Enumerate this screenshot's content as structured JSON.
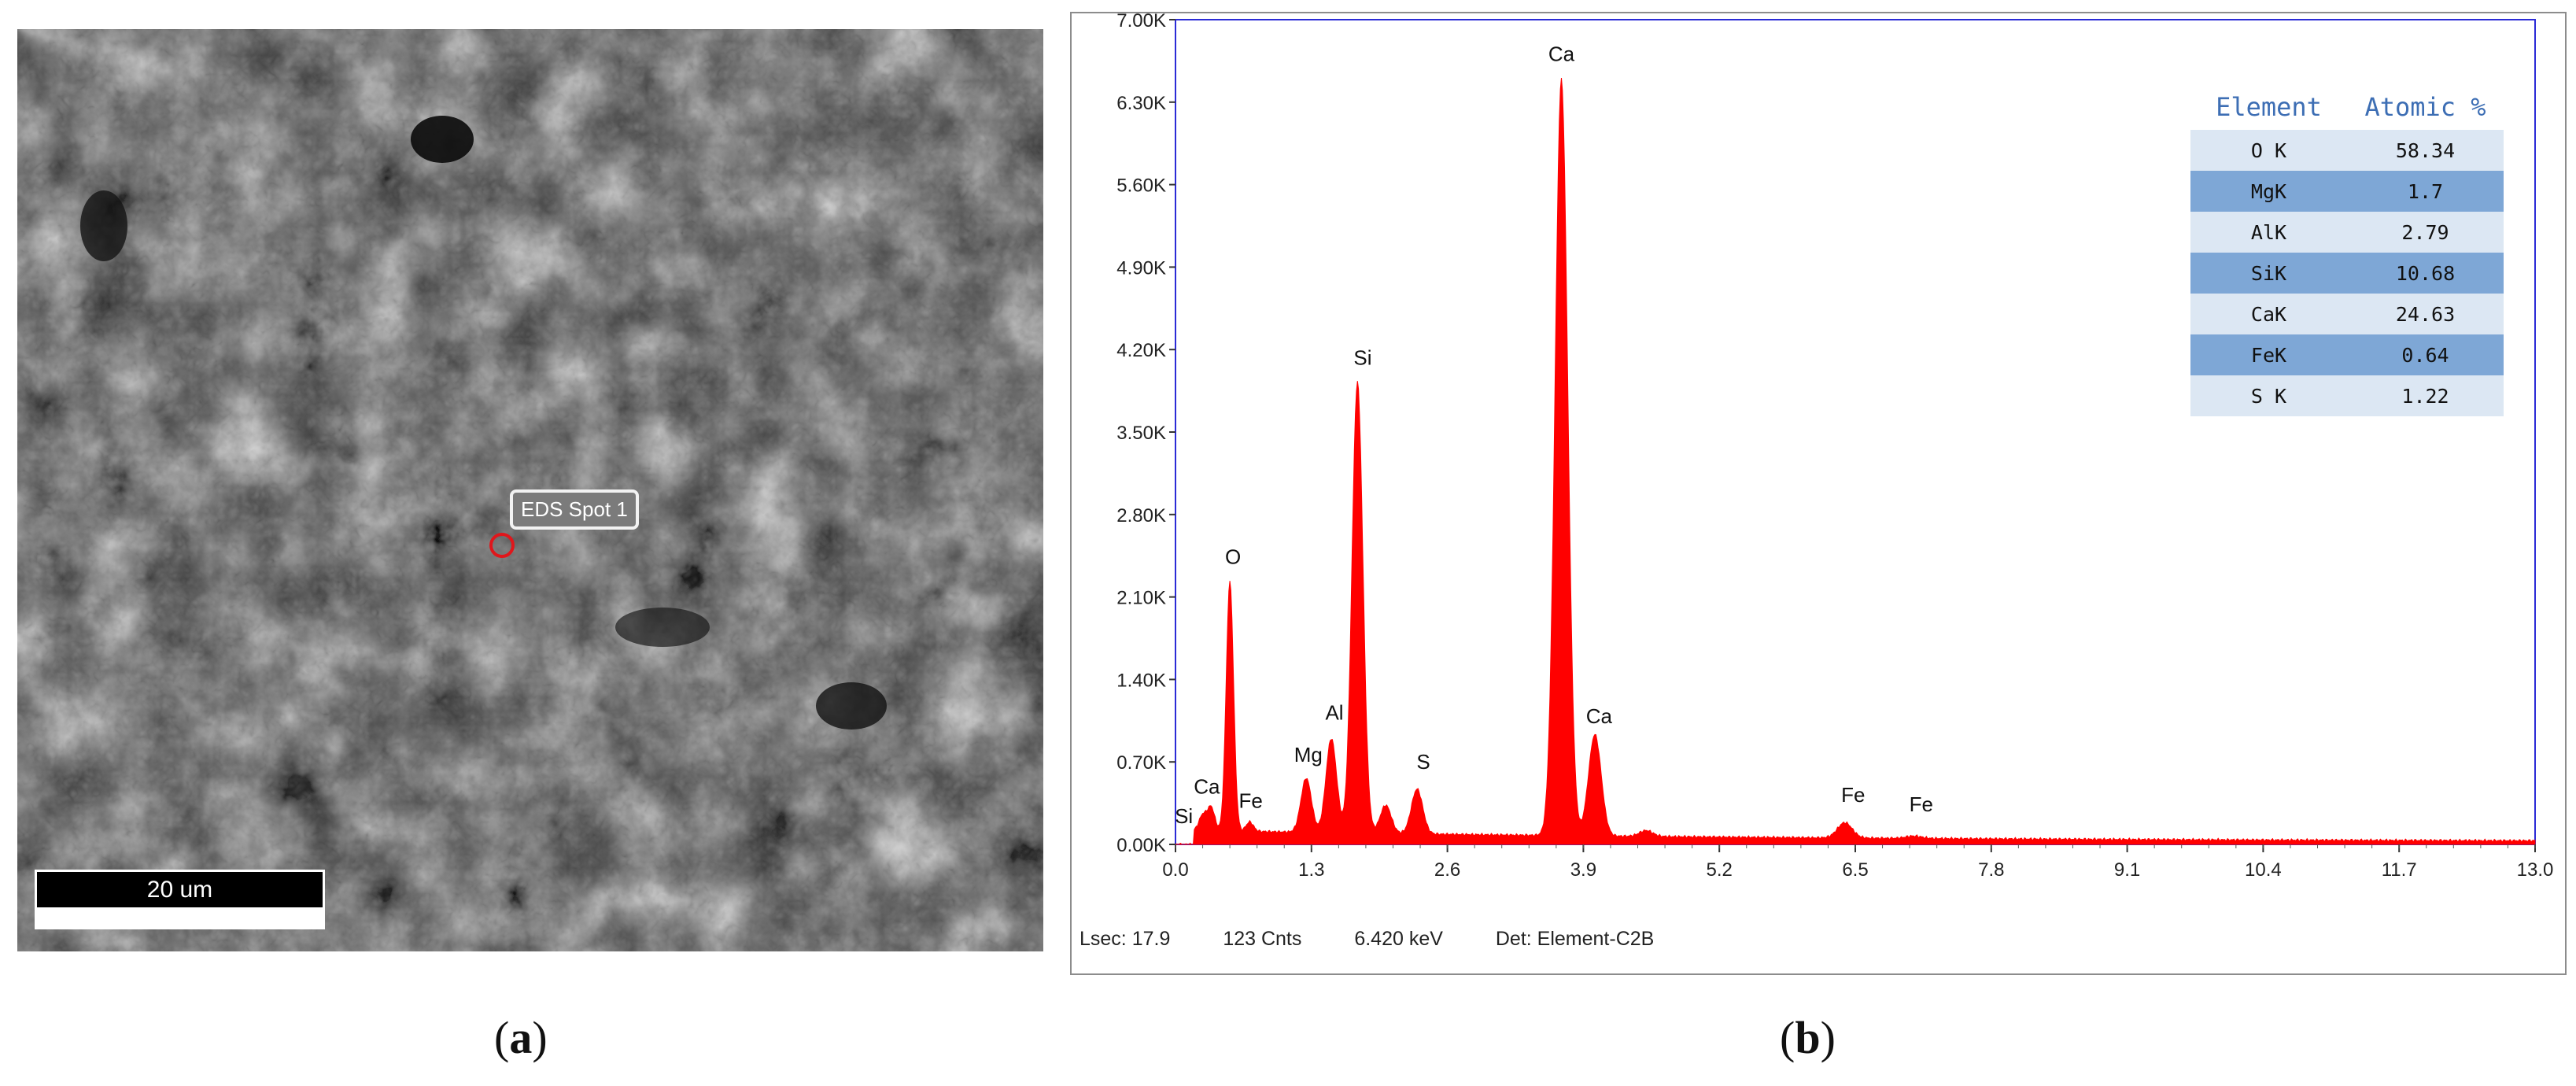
{
  "panel_a": {
    "caption_letter": "a",
    "scale_bar_label": "20 um",
    "marker_label": "EDS Spot 1"
  },
  "panel_b": {
    "caption_letter": "b",
    "status": {
      "lsec": "Lsec: 17.9",
      "cnts": "123 Cnts",
      "kev": "6.420 keV",
      "det": "Det: Element-C2B"
    },
    "table": {
      "headers": [
        "Element",
        "Atomic %"
      ],
      "rows": [
        [
          "O K",
          "58.34"
        ],
        [
          "MgK",
          "1.7"
        ],
        [
          "AlK",
          "2.79"
        ],
        [
          "SiK",
          "10.68"
        ],
        [
          "CaK",
          "24.63"
        ],
        [
          "FeK",
          "0.64"
        ],
        [
          "S K",
          "1.22"
        ]
      ]
    }
  },
  "chart_data": {
    "type": "area",
    "xlim": [
      0.0,
      13.0
    ],
    "ylim": [
      0,
      7000
    ],
    "x_ticks": [
      "0.0",
      "1.3",
      "2.6",
      "3.9",
      "5.2",
      "6.5",
      "7.8",
      "9.1",
      "10.4",
      "11.7",
      "13.0"
    ],
    "y_ticks": [
      "0.00K",
      "0.70K",
      "1.40K",
      "2.10K",
      "2.80K",
      "3.50K",
      "4.20K",
      "4.90K",
      "5.60K",
      "6.30K",
      "7.00K"
    ],
    "series_color": "#ff0000",
    "baseline": 100,
    "peaks": [
      {
        "x": 0.26,
        "y": 230
      },
      {
        "x": 0.34,
        "y": 300
      },
      {
        "x": 0.52,
        "y": 2220
      },
      {
        "x": 0.71,
        "y": 180
      },
      {
        "x": 1.25,
        "y": 560
      },
      {
        "x": 1.49,
        "y": 900
      },
      {
        "x": 1.74,
        "y": 3930
      },
      {
        "x": 2.01,
        "y": 340
      },
      {
        "x": 2.31,
        "y": 480
      },
      {
        "x": 3.69,
        "y": 6520
      },
      {
        "x": 4.01,
        "y": 960
      },
      {
        "x": 4.5,
        "y": 150
      },
      {
        "x": 6.4,
        "y": 230
      },
      {
        "x": 7.06,
        "y": 120
      }
    ],
    "annotations": [
      {
        "text": "Si",
        "x": 0.08,
        "y": 180
      },
      {
        "text": "Ca",
        "x": 0.3,
        "y": 430
      },
      {
        "text": "Fe",
        "x": 0.72,
        "y": 310
      },
      {
        "text": "O",
        "x": 0.55,
        "y": 2380
      },
      {
        "text": "Mg",
        "x": 1.27,
        "y": 700
      },
      {
        "text": "Al",
        "x": 1.52,
        "y": 1060
      },
      {
        "text": "Si",
        "x": 1.79,
        "y": 4070
      },
      {
        "text": "S",
        "x": 2.37,
        "y": 640
      },
      {
        "text": "Ca",
        "x": 3.69,
        "y": 6650
      },
      {
        "text": "Ca",
        "x": 4.05,
        "y": 1030
      },
      {
        "text": "Fe",
        "x": 6.48,
        "y": 360
      },
      {
        "text": "Fe",
        "x": 7.13,
        "y": 280
      }
    ]
  }
}
